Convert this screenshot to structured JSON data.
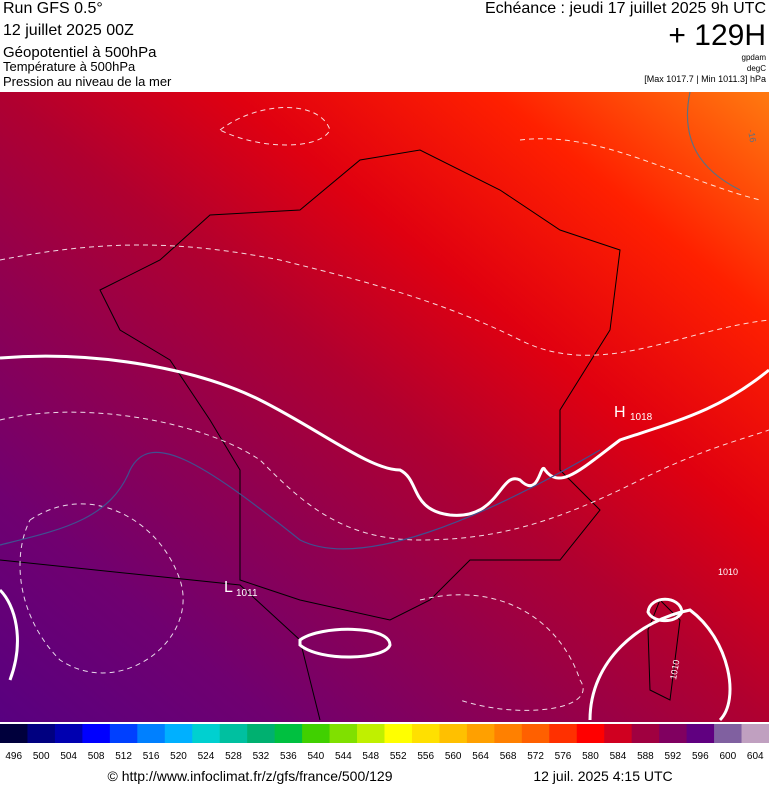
{
  "header": {
    "run": "Run GFS 0.5°",
    "run_date": "12 juillet 2025 00Z",
    "field": "Géopotentiel à 500hPa",
    "field2": "Température à 500hPa",
    "field3": "Pression au niveau de la mer",
    "valid": "Echéance : jeudi 17 juillet 2025 9h UTC",
    "lead": "+ 129H",
    "unit1": "gpdam",
    "unit2": "degC",
    "range": "[Max 1017.7 | Min 1011.3] hPa"
  },
  "map_labels": {
    "high": "H",
    "high_value": "1018",
    "low": "L",
    "low_value": "1011",
    "isobar_east": "1010",
    "isobar_corsica": "1010",
    "temp_ne": "-16"
  },
  "scale": {
    "values": [
      496,
      500,
      504,
      508,
      512,
      516,
      520,
      524,
      528,
      532,
      536,
      540,
      544,
      548,
      552,
      556,
      560,
      564,
      568,
      572,
      576,
      580,
      584,
      588,
      592,
      596,
      600,
      604
    ],
    "colors": [
      "#00003c",
      "#000080",
      "#0000b0",
      "#0000ff",
      "#0040ff",
      "#0080ff",
      "#00b0ff",
      "#00d0d0",
      "#00c0a0",
      "#00b070",
      "#00c040",
      "#40d000",
      "#80e000",
      "#c0f000",
      "#ffff00",
      "#ffe000",
      "#ffc000",
      "#ffa000",
      "#ff8000",
      "#ff6000",
      "#ff3000",
      "#ff0000",
      "#d00020",
      "#a00040",
      "#800060",
      "#600080",
      "#8060a0",
      "#c0a0c0"
    ]
  },
  "footer": {
    "source": "© http://www.infoclimat.fr/z/gfs/france/500/129",
    "generated": "12 juil. 2025  4:15 UTC"
  }
}
